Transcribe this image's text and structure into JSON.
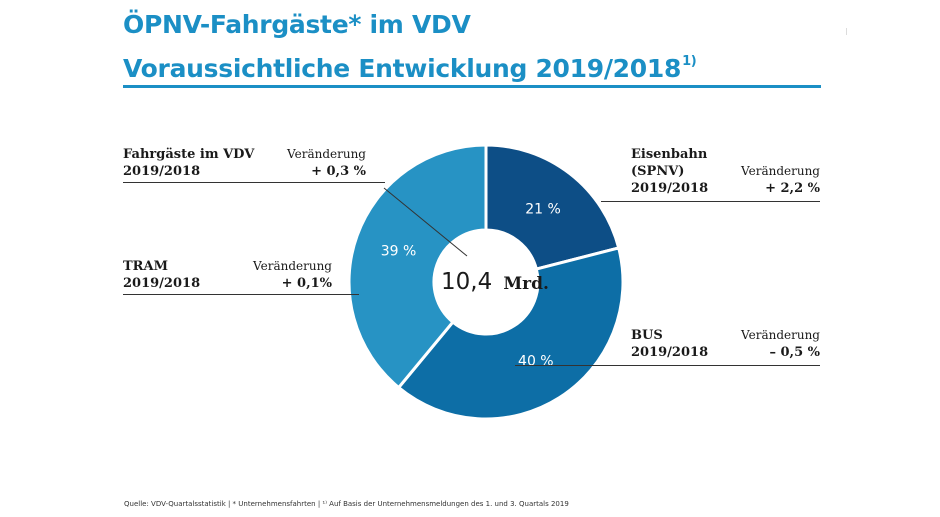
{
  "header": {
    "title_line1": "ÖPNV-Fahrgäste* im VDV",
    "title_line2": "Voraussichtliche Entwicklung 2019/2018",
    "title_footnote": "1)"
  },
  "chart_data": {
    "type": "pie",
    "style": "donut",
    "title": "ÖPNV-Fahrgäste* im VDV – Voraussichtliche Entwicklung 2019/2018",
    "center_label": {
      "value": "10,4",
      "unit": "Mrd."
    },
    "total": {
      "label_line1": "Fahrgäste im VDV",
      "label_line2": "2019/2018",
      "change_label": "Veränderung",
      "change": "+ 0,3 %"
    },
    "slices": [
      {
        "name": "Eisenbahn (SPNV)",
        "label_lines": [
          "Eisenbahn",
          "(SPNV)",
          "2019/2018"
        ],
        "value": 21,
        "pct_label": "21 %",
        "change_label": "Veränderung",
        "change": "+ 2,2 %",
        "color": "#0d4e86"
      },
      {
        "name": "BUS",
        "label_lines": [
          "BUS",
          "2019/2018"
        ],
        "value": 40,
        "pct_label": "40 %",
        "change_label": "Veränderung",
        "change": "– 0,5 %",
        "color": "#0d6ea6"
      },
      {
        "name": "TRAM",
        "label_lines": [
          "TRAM",
          "2019/2018"
        ],
        "value": 39,
        "pct_label": "39 %",
        "change_label": "Veränderung",
        "change": "+ 0,1%",
        "color": "#2793c4"
      }
    ]
  },
  "footer": {
    "source": "Quelle: VDV-Quartalsstatistik | * Unternehmensfahrten | ¹⁾ Auf Basis der Unternehmensmeldungen des 1. und 3. Quartals 2019"
  },
  "colors": {
    "accent": "#1b8fc5",
    "leader": "#333333"
  }
}
